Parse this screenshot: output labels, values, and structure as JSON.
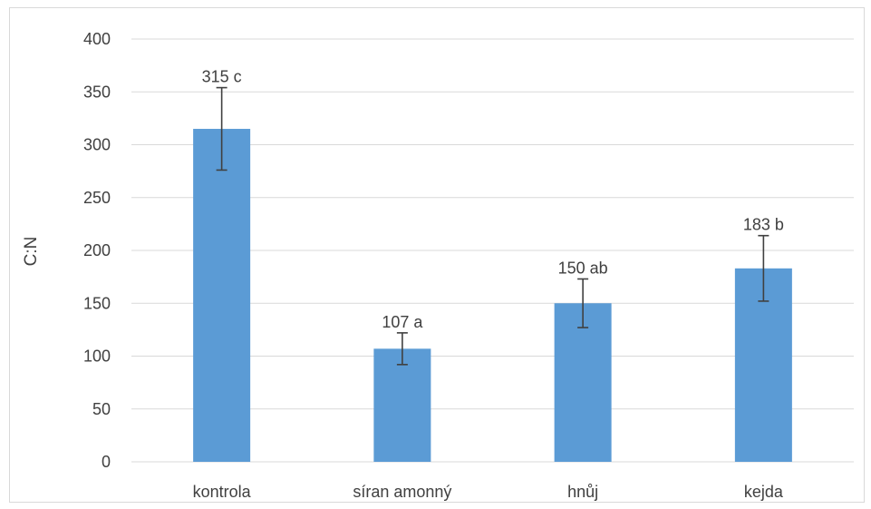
{
  "chart_data": {
    "type": "bar",
    "title": "",
    "xlabel": "",
    "ylabel": "C:N",
    "ylim": [
      0,
      400
    ],
    "y_ticks": [
      0,
      50,
      100,
      150,
      200,
      250,
      300,
      350,
      400
    ],
    "y_tick_labels": [
      "0",
      "50",
      "100",
      "150",
      "200",
      "250",
      "300",
      "350",
      "400"
    ],
    "categories": [
      "kontrola",
      "síran amonný",
      "hnůj",
      "kejda"
    ],
    "values": [
      315,
      107,
      150,
      183
    ],
    "error_low": [
      276,
      92,
      127,
      152
    ],
    "error_high": [
      354,
      122,
      173,
      214
    ],
    "data_labels": [
      "315 c",
      "107 a",
      "150 ab",
      "183 b"
    ],
    "grid": true,
    "legend": "none",
    "colors": {
      "bar": "#5b9bd5",
      "grid": "#d9d9d9",
      "error_bar": "#404040",
      "text": "#404040"
    }
  }
}
